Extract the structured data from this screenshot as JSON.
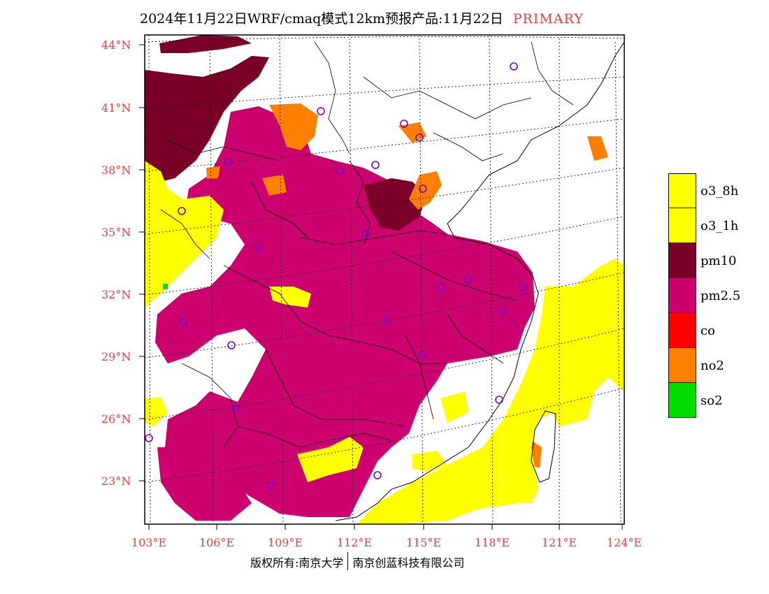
{
  "title": {
    "main": "2024年11月22日WRF/cmaq模式12km预报产品:11月22日",
    "tag": "PRIMARY"
  },
  "axes": {
    "lon_ticks": [
      "103°E",
      "106°E",
      "109°E",
      "112°E",
      "115°E",
      "118°E",
      "121°E",
      "124°E"
    ],
    "lat_ticks": [
      "44°N",
      "41°N",
      "38°N",
      "35°N",
      "32°N",
      "29°N",
      "26°N",
      "23°N"
    ]
  },
  "legend": [
    {
      "label": "o3_8h",
      "color": "#ffff00"
    },
    {
      "label": "o3_1h",
      "color": "#ffff00"
    },
    {
      "label": "pm10",
      "color": "#7a0028"
    },
    {
      "label": "pm2.5",
      "color": "#cc006e"
    },
    {
      "label": "co",
      "color": "#ff0000"
    },
    {
      "label": "no2",
      "color": "#ff7f00"
    },
    {
      "label": "so2",
      "color": "#00dd00"
    }
  ],
  "copyright": {
    "left": "版权所有:南京大学",
    "right": "南京创蓝科技有限公司"
  }
}
